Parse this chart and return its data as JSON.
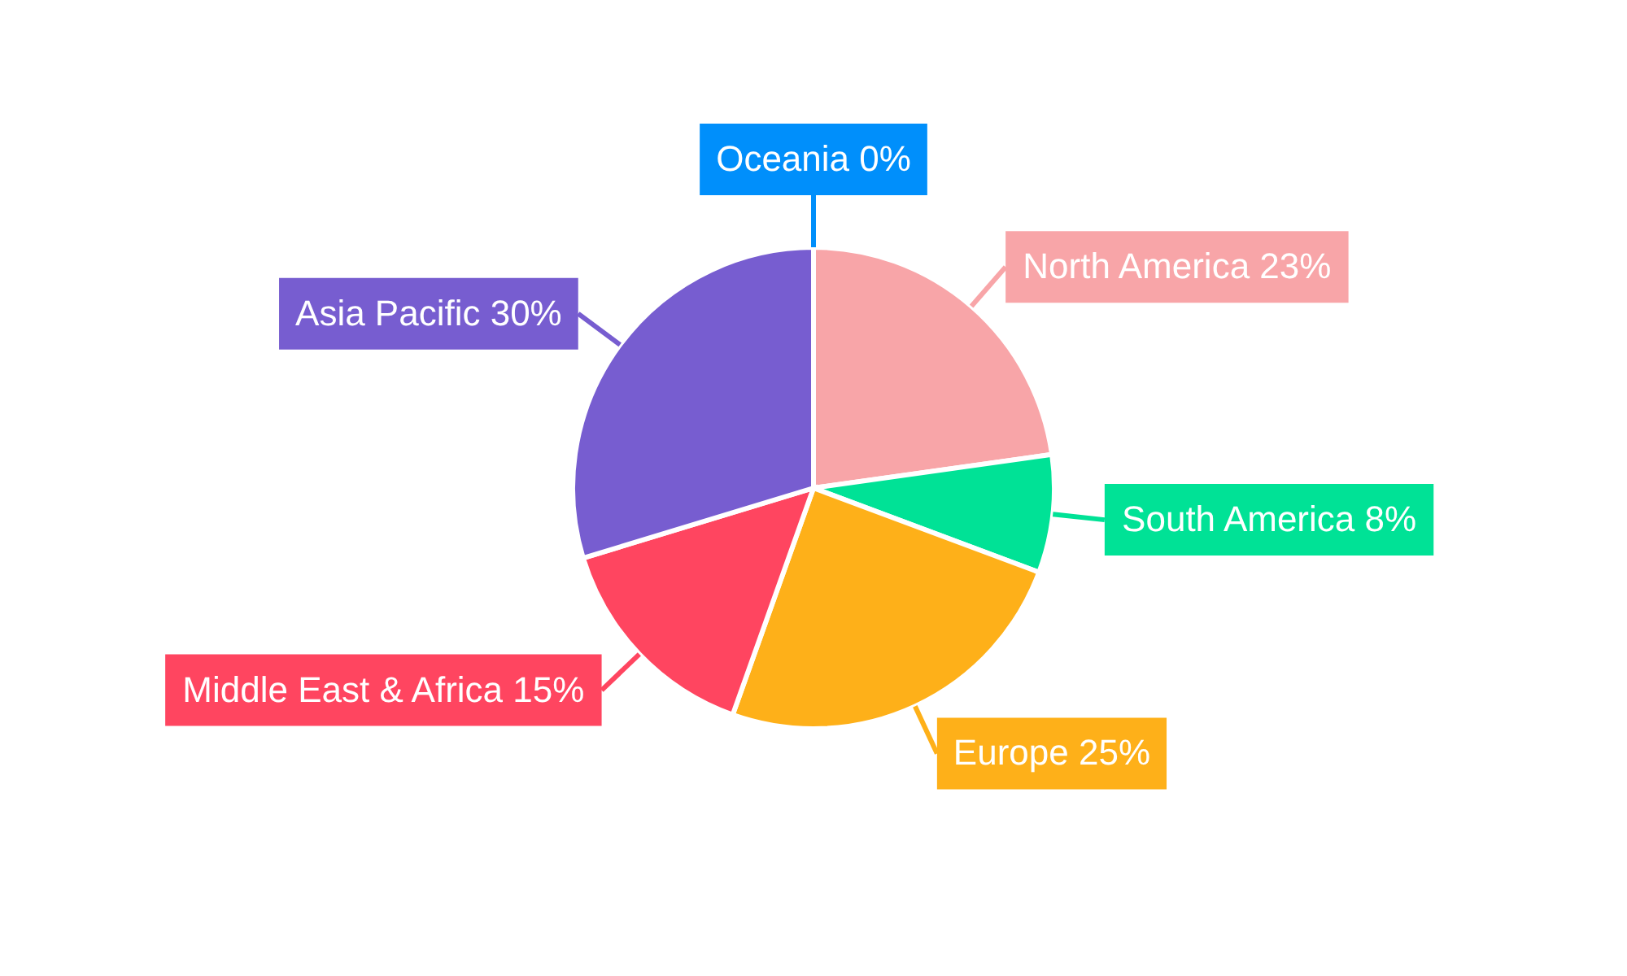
{
  "chart_data": {
    "type": "pie",
    "categories": [
      "North America",
      "South America",
      "Europe",
      "Middle East & Africa",
      "Asia Pacific",
      "Oceania"
    ],
    "values": [
      23,
      8,
      25,
      15,
      30,
      0
    ],
    "value_labels": [
      "23%",
      "8%",
      "25%",
      "15%",
      "30%",
      "0%"
    ],
    "colors": [
      "#f8a5a8",
      "#00e296",
      "#feb019",
      "#ff4560",
      "#775dd0",
      "#008ffb"
    ]
  }
}
